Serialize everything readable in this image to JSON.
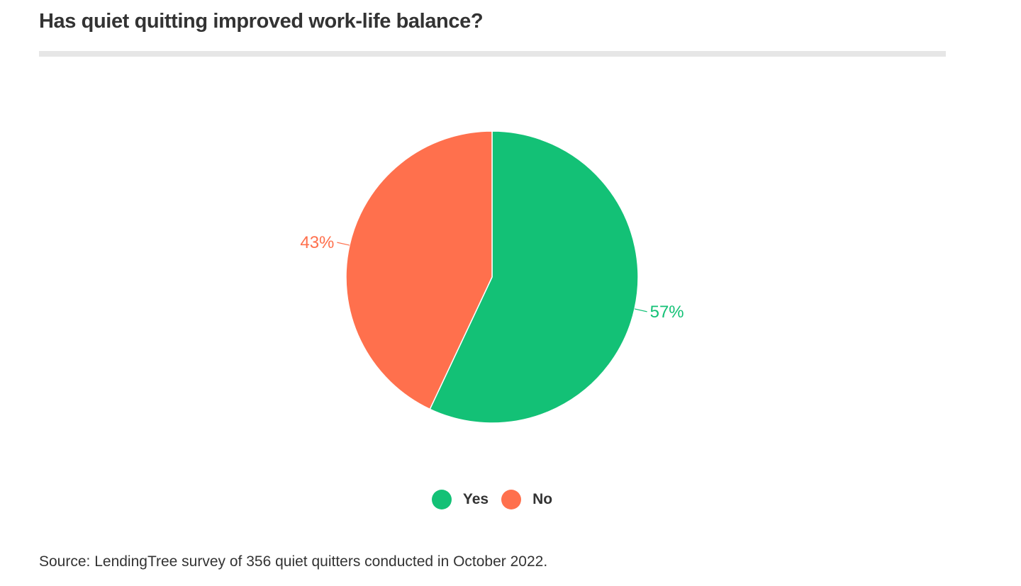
{
  "chart_data": {
    "type": "pie",
    "title": "Has quiet quitting improved work-life balance?",
    "categories": [
      "Yes",
      "No"
    ],
    "values": [
      57,
      43
    ],
    "labels": [
      "57%",
      "43%"
    ],
    "colors": [
      "#13c176",
      "#ff704d"
    ],
    "legend_position": "bottom",
    "source": "Source: LendingTree survey of 356 quiet quitters conducted in October 2022."
  }
}
